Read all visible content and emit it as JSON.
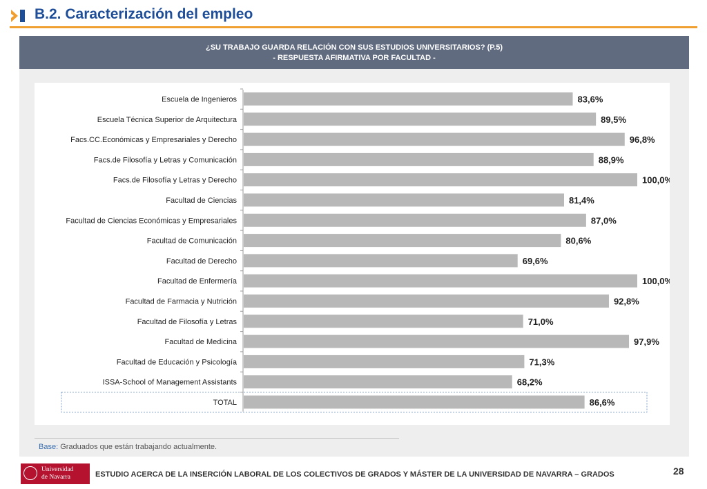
{
  "header": {
    "title": "B.2. Caracterización del empleo",
    "accent": "#f0a030",
    "title_color": "#1f4e99"
  },
  "banner": {
    "line1": "¿SU TRABAJO GUARDA RELACIÓN CON SUS ESTUDIOS UNIVERSITARIOS?  (P.5)",
    "line2": "- RESPUESTA AFIRMATIVA POR FACULTAD -",
    "color": "#606b80"
  },
  "chart_data": {
    "type": "bar",
    "orientation": "horizontal",
    "categories": [
      "Escuela de Ingenieros",
      "Escuela Técnica Superior de Arquitectura",
      "Facs.CC.Económicas y Empresariales y Derecho",
      "Facs.de Filosofía y Letras y Comunicación",
      "Facs.de Filosofía y Letras y Derecho",
      "Facultad de Ciencias",
      "Facultad de Ciencias Económicas y Empresariales",
      "Facultad de Comunicación",
      "Facultad de Derecho",
      "Facultad de Enfermería",
      "Facultad de Farmacia y Nutrición",
      "Facultad de Filosofía y Letras",
      "Facultad de Medicina",
      "Facultad de Educación y Psicología",
      "ISSA-School of Management Assistants",
      "TOTAL"
    ],
    "values": [
      83.6,
      89.5,
      96.8,
      88.9,
      100.0,
      81.4,
      87.0,
      80.6,
      69.6,
      100.0,
      92.8,
      71.0,
      97.9,
      71.3,
      68.2,
      86.6
    ],
    "value_labels": [
      "83,6%",
      "89,5%",
      "96,8%",
      "88,9%",
      "100,0%",
      "81,4%",
      "87,0%",
      "80,6%",
      "69,6%",
      "100,0%",
      "92,8%",
      "71,0%",
      "97,9%",
      "71,3%",
      "68,2%",
      "86,6%"
    ],
    "xlim": [
      0,
      100
    ],
    "grid": false,
    "bar_color": "#b8b8b8",
    "highlight_category": "TOTAL"
  },
  "base_note": {
    "label": "Base:",
    "text": " Graduados que están trabajando actualmente."
  },
  "footer": {
    "logo_line1": "Universidad",
    "logo_line2": "de Navarra",
    "logo_color": "#b5122f",
    "text": "ESTUDIO ACERCA DE LA INSERCIÓN LABORAL DE LOS COLECTIVOS DE GRADOS Y MÁSTER DE LA UNIVERSIDAD DE NAVARRA – GRADOS",
    "page_number": "28"
  }
}
